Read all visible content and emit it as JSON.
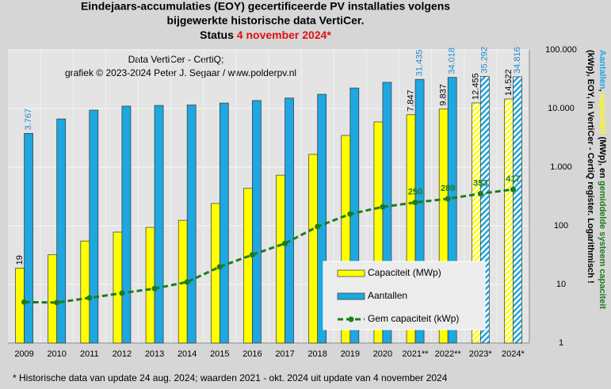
{
  "chart_data": {
    "type": "bar",
    "title_lines": [
      "Eindejaars-accumulaties (EOY) gecertificeerde PV installaties volgens",
      "bijgewerkte historische data VertiCer."
    ],
    "status_prefix": "Status",
    "status_date": "4 november 2024*",
    "annotations": [
      "Data VertiCer - CertiQ;",
      "grafiek © 2023-2024 Peter J. Segaar / www.polderpv.nl"
    ],
    "footnote": "* Historische data van update 24 aug. 2024; waarden 2021 - okt. 2024 uit update van 4 november 2024",
    "ylabel_lines": [
      [
        {
          "text": "Aantallen",
          "color": "#1ea7e1"
        },
        {
          "text": ", ",
          "color": "#000000"
        },
        {
          "text": "capaciteit",
          "color": "#ffff00"
        },
        {
          "text": " (MWp), en ",
          "color": "#000000"
        },
        {
          "text": "gemiddelde systeem capaciteit",
          "color": "#1e7b1e"
        }
      ],
      [
        {
          "text": "(kWp), EOY, in VertiCer - CertiQ register. Logarithmisch !",
          "color": "#000000"
        }
      ]
    ],
    "categories": [
      "2009",
      "2010",
      "2011",
      "2012",
      "2013",
      "2014",
      "2015",
      "2016",
      "2017",
      "2018",
      "2019",
      "2020",
      "2021**",
      "2022**",
      "2023*",
      "2024*"
    ],
    "series": [
      {
        "name": "Capaciteit (MWp)",
        "type": "bar",
        "color": "#ffff00",
        "values": [
          19,
          32,
          55,
          78,
          94,
          124,
          240,
          434,
          730,
          1650,
          3470,
          5900,
          7847,
          9837,
          12455,
          14522
        ],
        "value_labels": [
          "19",
          null,
          null,
          null,
          null,
          null,
          null,
          null,
          null,
          null,
          null,
          null,
          "7.847",
          "9.837",
          "12.455",
          "14.522"
        ],
        "hatch": [
          false,
          false,
          false,
          false,
          false,
          false,
          false,
          false,
          false,
          false,
          false,
          false,
          false,
          false,
          true,
          true
        ]
      },
      {
        "name": "Aantallen",
        "type": "bar",
        "color": "#1ea7e1",
        "values": [
          3767,
          6650,
          9400,
          11000,
          11300,
          11500,
          12400,
          13700,
          15100,
          17500,
          22400,
          28000,
          31435,
          34018,
          35292,
          34816
        ],
        "value_labels": [
          "3.767",
          null,
          null,
          null,
          null,
          null,
          null,
          null,
          null,
          null,
          null,
          null,
          "31.435",
          "34.018",
          "35.292",
          "34.816"
        ],
        "hatch": [
          false,
          false,
          false,
          false,
          false,
          false,
          false,
          false,
          false,
          false,
          false,
          false,
          false,
          false,
          true,
          true
        ]
      },
      {
        "name": "Gem capaciteit (kWp)",
        "type": "line",
        "color": "#1e7b1e",
        "values": [
          5.0,
          4.9,
          5.9,
          7.1,
          8.5,
          11,
          20,
          32,
          50,
          97,
          159,
          210,
          250,
          289,
          353,
          417
        ],
        "value_labels": [
          null,
          null,
          null,
          null,
          null,
          null,
          null,
          null,
          null,
          null,
          null,
          null,
          "250",
          "289",
          "353",
          "417"
        ]
      }
    ],
    "log_scale": true,
    "ylim": [
      1,
      100000
    ],
    "yticks": [
      1,
      10,
      100,
      {
        "value": 1000,
        "label": "1.000"
      },
      {
        "value": 10000,
        "label": "10.000"
      },
      {
        "value": 100000,
        "label": "100.000"
      }
    ],
    "grid": true,
    "legend": "lower right"
  }
}
